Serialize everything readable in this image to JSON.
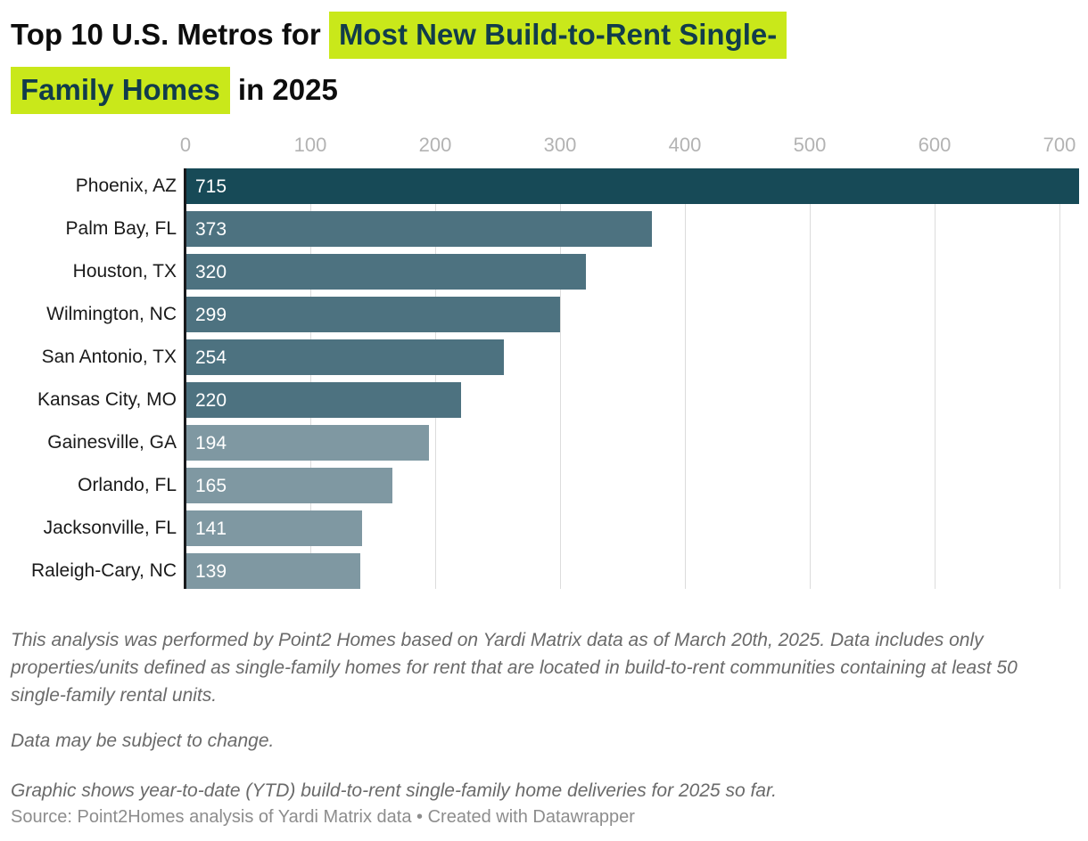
{
  "title": {
    "line1_plain": "Top 10 U.S. Metros for",
    "line1_highlight": "Most New Build-to-Rent Single-",
    "line2_highlight": "Family Homes",
    "line2_plain": "in 2025"
  },
  "chart_data": {
    "type": "bar",
    "orientation": "horizontal",
    "title": "Top 10 U.S. Metros for Most New Build-to-Rent Single-Family Homes in 2025",
    "categories": [
      "Phoenix, AZ",
      "Palm Bay, FL",
      "Houston, TX",
      "Wilmington, NC",
      "San Antonio, TX",
      "Kansas City, MO",
      "Gainesville, GA",
      "Orlando, FL",
      "Jacksonville, FL",
      "Raleigh-Cary, NC"
    ],
    "values": [
      715,
      373,
      320,
      299,
      254,
      220,
      194,
      165,
      141,
      139
    ],
    "bar_colors": [
      "#174a57",
      "#4d7280",
      "#4d7280",
      "#4d7280",
      "#4d7280",
      "#4d7280",
      "#7f98a2",
      "#7f98a2",
      "#7f98a2",
      "#7f98a2"
    ],
    "x_ticks": [
      0,
      100,
      200,
      300,
      400,
      500,
      600,
      700
    ],
    "xlim": [
      0,
      715
    ],
    "xlabel": "",
    "ylabel": "",
    "grid": "vertical",
    "legend": "none",
    "value_label_position": "inside-start"
  },
  "notes": {
    "p1": "This analysis was performed by Point2 Homes based on Yardi Matrix data as of March 20th, 2025. Data includes only properties/units defined as single-family homes for rent that are located in build-to-rent communities containing at least 50 single-family rental units.",
    "p2": "Data may be subject to change.",
    "p3": "Graphic shows year-to-date (YTD) build-to-rent single-family home deliveries for 2025 so far."
  },
  "source": "Source: Point2Homes analysis of Yardi Matrix data • Created with Datawrapper",
  "colors": {
    "highlight_bg": "#c9e81a",
    "highlight_text": "#113c4b",
    "title_text": "#0d0d0d",
    "tick_label": "#b3b3b3",
    "gridline": "#dcdcdc",
    "axis_line": "#18191c",
    "value_label": "#ffffff",
    "category_label": "#1a1a1a",
    "notes_text": "#6a6a6a",
    "source_text": "#8d8d8d"
  }
}
